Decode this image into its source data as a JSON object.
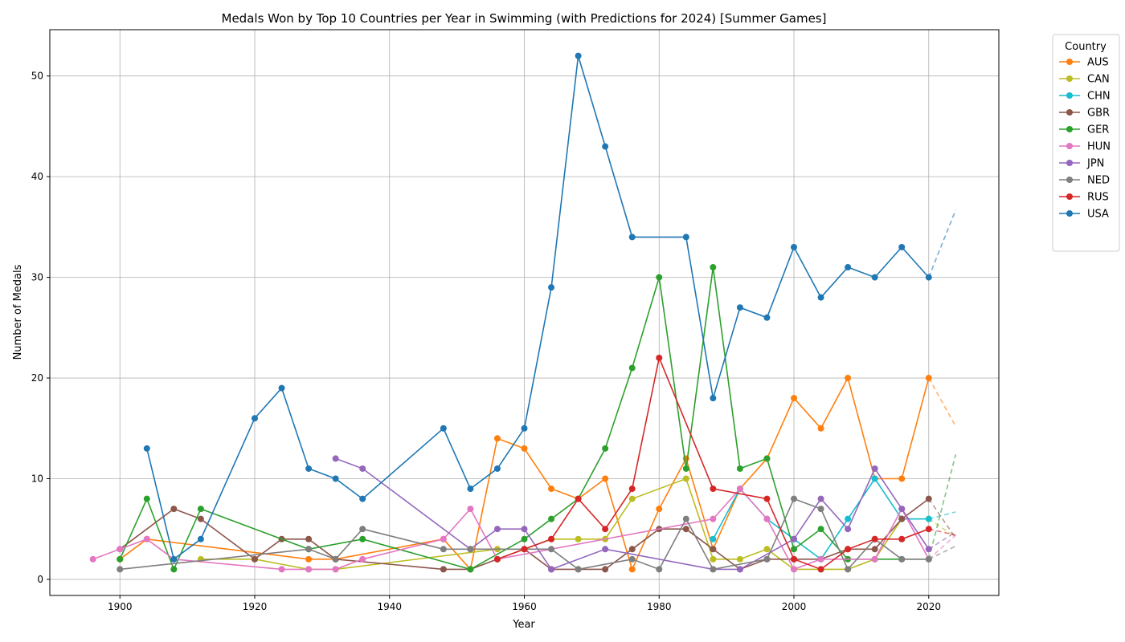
{
  "chart_data": {
    "type": "line",
    "title": "Medals Won by Top 10 Countries per Year in Swimming (with Predictions for 2024) [Summer Games]",
    "xlabel": "Year",
    "ylabel": "Number of Medals",
    "xlim": [
      1889.6,
      2030.4
    ],
    "ylim": [
      -1.6,
      54.6
    ],
    "x_ticks": [
      1900,
      1920,
      1940,
      1960,
      1980,
      2000,
      2020
    ],
    "y_ticks": [
      0,
      10,
      20,
      30,
      40,
      50
    ],
    "grid": true,
    "legend": {
      "title": "Country",
      "placement": "outside-top-right"
    },
    "prediction_year": 2024,
    "series": [
      {
        "name": "AUS",
        "color": "#ff7f0e",
        "points": [
          [
            1900,
            2
          ],
          [
            1904,
            4
          ],
          [
            1928,
            2
          ],
          [
            1932,
            2
          ],
          [
            1948,
            4
          ],
          [
            1952,
            1
          ],
          [
            1956,
            14
          ],
          [
            1960,
            13
          ],
          [
            1964,
            9
          ],
          [
            1968,
            8
          ],
          [
            1972,
            10
          ],
          [
            1976,
            1
          ],
          [
            1980,
            7
          ],
          [
            1984,
            12
          ],
          [
            1988,
            3
          ],
          [
            1992,
            9
          ],
          [
            1996,
            12
          ],
          [
            2000,
            18
          ],
          [
            2004,
            15
          ],
          [
            2008,
            20
          ],
          [
            2012,
            10
          ],
          [
            2016,
            10
          ],
          [
            2020,
            20
          ]
        ],
        "prediction": 15.2
      },
      {
        "name": "CAN",
        "color": "#bcbd22",
        "points": [
          [
            1912,
            2
          ],
          [
            1920,
            2
          ],
          [
            1928,
            1
          ],
          [
            1932,
            1
          ],
          [
            1956,
            3
          ],
          [
            1960,
            3
          ],
          [
            1964,
            4
          ],
          [
            1968,
            4
          ],
          [
            1972,
            4
          ],
          [
            1976,
            8
          ],
          [
            1984,
            10
          ],
          [
            1988,
            2
          ],
          [
            1992,
            2
          ],
          [
            1996,
            3
          ],
          [
            2000,
            1
          ],
          [
            2004,
            1
          ],
          [
            2008,
            1
          ],
          [
            2012,
            2
          ],
          [
            2016,
            6
          ],
          [
            2020,
            6
          ]
        ],
        "prediction": 4.2
      },
      {
        "name": "CHN",
        "color": "#17becf",
        "points": [
          [
            1988,
            4
          ],
          [
            1992,
            9
          ],
          [
            1996,
            6
          ],
          [
            2000,
            4
          ],
          [
            2004,
            2
          ],
          [
            2008,
            6
          ],
          [
            2012,
            10
          ],
          [
            2016,
            6
          ],
          [
            2020,
            6
          ]
        ],
        "prediction": 6.7
      },
      {
        "name": "GBR",
        "color": "#8c564b",
        "points": [
          [
            1900,
            3
          ],
          [
            1908,
            7
          ],
          [
            1912,
            6
          ],
          [
            1920,
            2
          ],
          [
            1924,
            4
          ],
          [
            1928,
            4
          ],
          [
            1932,
            2
          ],
          [
            1948,
            1
          ],
          [
            1952,
            1
          ],
          [
            1956,
            2
          ],
          [
            1960,
            3
          ],
          [
            1964,
            1
          ],
          [
            1968,
            1
          ],
          [
            1972,
            1
          ],
          [
            1976,
            3
          ],
          [
            1980,
            5
          ],
          [
            1984,
            5
          ],
          [
            1988,
            3
          ],
          [
            1992,
            1
          ],
          [
            1996,
            2
          ],
          [
            2000,
            2
          ],
          [
            2004,
            2
          ],
          [
            2008,
            3
          ],
          [
            2012,
            3
          ],
          [
            2016,
            6
          ],
          [
            2020,
            8
          ]
        ],
        "prediction": 4.1
      },
      {
        "name": "GER",
        "color": "#2ca02c",
        "points": [
          [
            1900,
            2
          ],
          [
            1904,
            8
          ],
          [
            1908,
            1
          ],
          [
            1912,
            7
          ],
          [
            1928,
            3
          ],
          [
            1936,
            4
          ],
          [
            1952,
            1
          ],
          [
            1960,
            4
          ],
          [
            1964,
            6
          ],
          [
            1968,
            8
          ],
          [
            1972,
            13
          ],
          [
            1976,
            21
          ],
          [
            1980,
            30
          ],
          [
            1984,
            11
          ],
          [
            1988,
            31
          ],
          [
            1992,
            11
          ],
          [
            1996,
            12
          ],
          [
            2000,
            3
          ],
          [
            2004,
            5
          ],
          [
            2008,
            2
          ],
          [
            2012,
            2
          ],
          [
            2016,
            2
          ],
          [
            2020,
            2
          ]
        ],
        "prediction": 12.4
      },
      {
        "name": "HUN",
        "color": "#e377c2",
        "points": [
          [
            1896,
            2
          ],
          [
            1900,
            3
          ],
          [
            1904,
            4
          ],
          [
            1908,
            2
          ],
          [
            1924,
            1
          ],
          [
            1928,
            1
          ],
          [
            1932,
            1
          ],
          [
            1936,
            2
          ],
          [
            1948,
            4
          ],
          [
            1952,
            7
          ],
          [
            1956,
            2
          ],
          [
            1988,
            6
          ],
          [
            1992,
            9
          ],
          [
            1996,
            6
          ],
          [
            2000,
            1
          ],
          [
            2004,
            2
          ],
          [
            2012,
            2
          ],
          [
            2016,
            7
          ],
          [
            2020,
            2
          ]
        ],
        "prediction": 4.4
      },
      {
        "name": "JPN",
        "color": "#9467bd",
        "points": [
          [
            1932,
            12
          ],
          [
            1936,
            11
          ],
          [
            1952,
            3
          ],
          [
            1956,
            5
          ],
          [
            1960,
            5
          ],
          [
            1964,
            1
          ],
          [
            1972,
            3
          ],
          [
            1988,
            1
          ],
          [
            1992,
            1
          ],
          [
            2000,
            4
          ],
          [
            2004,
            8
          ],
          [
            2008,
            5
          ],
          [
            2012,
            11
          ],
          [
            2016,
            7
          ],
          [
            2020,
            3
          ]
        ],
        "prediction": 4.7
      },
      {
        "name": "NED",
        "color": "#7f7f7f",
        "points": [
          [
            1900,
            1
          ],
          [
            1928,
            3
          ],
          [
            1932,
            2
          ],
          [
            1936,
            5
          ],
          [
            1948,
            3
          ],
          [
            1952,
            3
          ],
          [
            1964,
            3
          ],
          [
            1968,
            1
          ],
          [
            1976,
            2
          ],
          [
            1980,
            1
          ],
          [
            1984,
            6
          ],
          [
            1988,
            1
          ],
          [
            1996,
            2
          ],
          [
            2000,
            8
          ],
          [
            2004,
            7
          ],
          [
            2008,
            1
          ],
          [
            2012,
            4
          ],
          [
            2016,
            2
          ],
          [
            2020,
            2
          ]
        ],
        "prediction": 3.3
      },
      {
        "name": "RUS",
        "color": "#d62728",
        "points": [
          [
            1956,
            2
          ],
          [
            1960,
            3
          ],
          [
            1964,
            4
          ],
          [
            1968,
            8
          ],
          [
            1972,
            5
          ],
          [
            1976,
            9
          ],
          [
            1980,
            22
          ],
          [
            1988,
            9
          ],
          [
            1996,
            8
          ],
          [
            2000,
            2
          ],
          [
            2004,
            1
          ],
          [
            2008,
            3
          ],
          [
            2012,
            4
          ],
          [
            2016,
            4
          ],
          [
            2020,
            5
          ]
        ],
        "prediction": 4.4
      },
      {
        "name": "USA",
        "color": "#1f77b4",
        "points": [
          [
            1904,
            13
          ],
          [
            1908,
            2
          ],
          [
            1912,
            4
          ],
          [
            1920,
            16
          ],
          [
            1924,
            19
          ],
          [
            1928,
            11
          ],
          [
            1932,
            10
          ],
          [
            1936,
            8
          ],
          [
            1948,
            15
          ],
          [
            1952,
            9
          ],
          [
            1956,
            11
          ],
          [
            1960,
            15
          ],
          [
            1964,
            29
          ],
          [
            1968,
            52
          ],
          [
            1972,
            43
          ],
          [
            1976,
            34
          ],
          [
            1984,
            34
          ],
          [
            1988,
            18
          ],
          [
            1992,
            27
          ],
          [
            1996,
            26
          ],
          [
            2000,
            33
          ],
          [
            2004,
            28
          ],
          [
            2008,
            31
          ],
          [
            2012,
            30
          ],
          [
            2016,
            33
          ],
          [
            2020,
            30
          ]
        ],
        "prediction": 36.7
      }
    ]
  }
}
